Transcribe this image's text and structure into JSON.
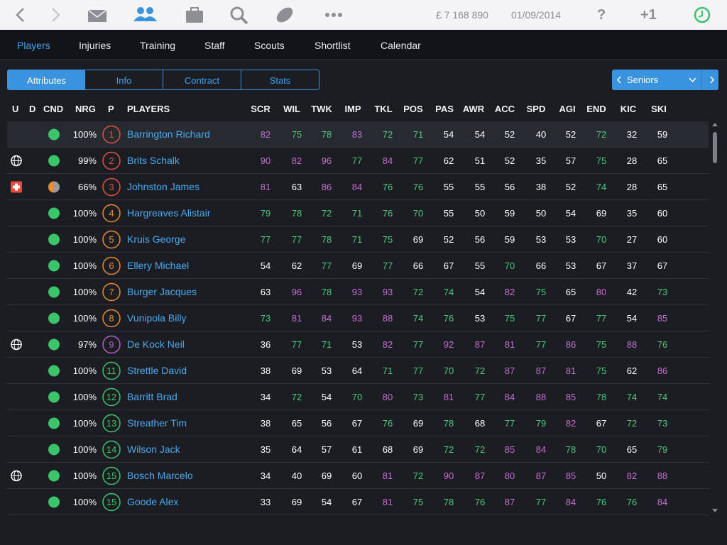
{
  "top_bar": {
    "money": "£ 7 168 890",
    "date": "01/09/2014",
    "help": "?",
    "notifications": "+1"
  },
  "nav_tabs": [
    "Players",
    "Injuries",
    "Training",
    "Staff",
    "Scouts",
    "Shortlist",
    "Calendar"
  ],
  "view_tabs": [
    "Attributes",
    "Info",
    "Contract",
    "Stats"
  ],
  "squad_selector": "Seniors",
  "stat_colors": {
    "high": "#c46fd1",
    "mid": "#4cc97b",
    "low": "#ffffff"
  },
  "table": {
    "columns": [
      "U",
      "D",
      "CND",
      "NRG",
      "P",
      "PLAYERS",
      "SCR",
      "WIL",
      "TWK",
      "IMP",
      "TKL",
      "POS",
      "PAS",
      "AWR",
      "ACC",
      "SPD",
      "AGI",
      "END",
      "KIC",
      "SKI"
    ],
    "rows": [
      {
        "nrg": "100%",
        "p": 1,
        "name": "Barrington Richard",
        "stats": [
          82,
          75,
          78,
          83,
          72,
          71,
          54,
          54,
          52,
          40,
          52,
          72,
          32,
          59
        ]
      },
      {
        "nrg": "99%",
        "p": 2,
        "name": "Brits Schalk",
        "stats": [
          90,
          82,
          96,
          77,
          84,
          77,
          62,
          51,
          52,
          35,
          57,
          75,
          28,
          65
        ]
      },
      {
        "nrg": "66%",
        "p": 3,
        "name": "Johnston James",
        "stats": [
          81,
          63,
          86,
          84,
          76,
          76,
          55,
          55,
          56,
          38,
          52,
          74,
          28,
          65
        ]
      },
      {
        "nrg": "100%",
        "p": 4,
        "name": "Hargreaves Alistair",
        "stats": [
          79,
          78,
          72,
          71,
          76,
          70,
          55,
          50,
          59,
          50,
          54,
          69,
          35,
          60
        ]
      },
      {
        "nrg": "100%",
        "p": 5,
        "name": "Kruis George",
        "stats": [
          77,
          77,
          78,
          71,
          75,
          69,
          52,
          56,
          59,
          53,
          53,
          70,
          27,
          60
        ]
      },
      {
        "nrg": "100%",
        "p": 6,
        "name": "Ellery Michael",
        "stats": [
          54,
          62,
          77,
          69,
          77,
          66,
          67,
          55,
          70,
          66,
          53,
          67,
          37,
          67
        ]
      },
      {
        "nrg": "100%",
        "p": 7,
        "name": "Burger Jacques",
        "stats": [
          63,
          96,
          78,
          93,
          93,
          72,
          74,
          54,
          82,
          75,
          65,
          80,
          42,
          73
        ]
      },
      {
        "nrg": "100%",
        "p": 8,
        "name": "Vunipola Billy",
        "stats": [
          73,
          81,
          84,
          93,
          88,
          74,
          76,
          53,
          75,
          77,
          67,
          77,
          54,
          85
        ]
      },
      {
        "nrg": "97%",
        "p": 9,
        "name": "De Kock Neil",
        "stats": [
          36,
          77,
          71,
          53,
          82,
          77,
          92,
          87,
          81,
          77,
          86,
          75,
          88,
          76
        ]
      },
      {
        "nrg": "100%",
        "p": 11,
        "name": "Strettle David",
        "stats": [
          38,
          69,
          53,
          64,
          71,
          77,
          70,
          72,
          87,
          87,
          81,
          75,
          62,
          86
        ]
      },
      {
        "nrg": "100%",
        "p": 12,
        "name": "Barritt Brad",
        "stats": [
          34,
          72,
          54,
          70,
          80,
          73,
          81,
          77,
          84,
          88,
          85,
          78,
          74,
          74
        ]
      },
      {
        "nrg": "100%",
        "p": 13,
        "name": "Streather Tim",
        "stats": [
          38,
          65,
          56,
          67,
          76,
          69,
          78,
          68,
          77,
          79,
          82,
          67,
          72,
          73
        ]
      },
      {
        "nrg": "100%",
        "p": 14,
        "name": "Wilson Jack",
        "stats": [
          35,
          64,
          57,
          61,
          68,
          69,
          72,
          72,
          85,
          84,
          78,
          70,
          65,
          79
        ]
      },
      {
        "nrg": "100%",
        "p": 15,
        "name": "Bosch Marcelo",
        "stats": [
          34,
          40,
          69,
          60,
          81,
          72,
          90,
          87,
          80,
          87,
          85,
          50,
          82,
          88
        ]
      },
      {
        "nrg": "100%",
        "p": 15,
        "name": "Goode Alex",
        "stats": [
          33,
          69,
          54,
          67,
          81,
          75,
          78,
          76,
          87,
          77,
          84,
          76,
          76,
          84
        ]
      }
    ]
  }
}
